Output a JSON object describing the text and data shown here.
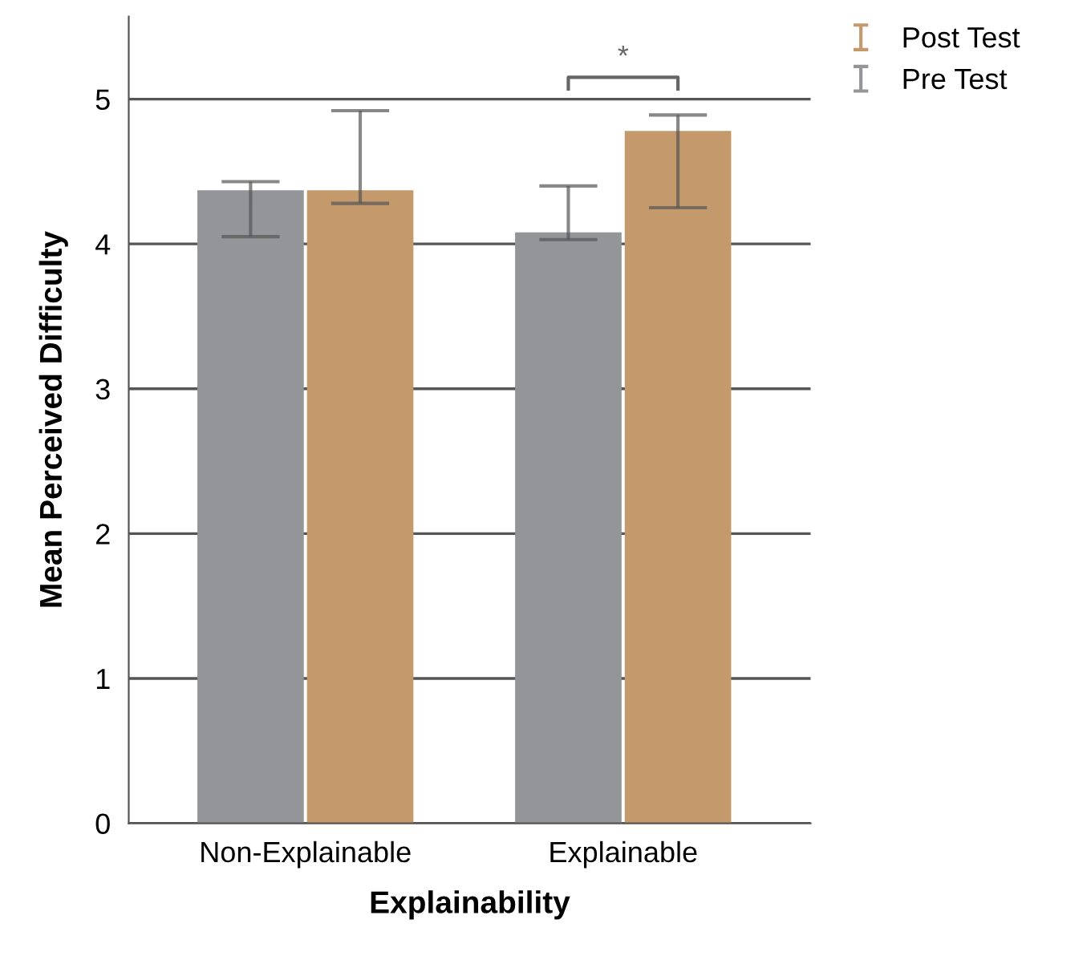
{
  "chart_data": {
    "type": "bar",
    "xlabel": "Explainability",
    "ylabel": "Mean Perceived Difficulty",
    "categories": [
      "Non-Explainable",
      "Explainable"
    ],
    "series": [
      {
        "name": "Pre Test",
        "color": "#939598",
        "values": [
          4.37,
          4.08
        ],
        "errors": [
          [
            4.05,
            4.43
          ],
          [
            4.03,
            4.4
          ]
        ]
      },
      {
        "name": "Post Test",
        "color": "#c49a6c",
        "values": [
          4.37,
          4.78
        ],
        "errors": [
          [
            4.28,
            4.92
          ],
          [
            4.25,
            4.89
          ]
        ]
      }
    ],
    "ylim": [
      0,
      5.57
    ],
    "yticks": [
      0,
      1,
      2,
      3,
      4,
      5
    ],
    "grid": "y",
    "legend": "top right",
    "annotations": [
      "*"
    ]
  }
}
